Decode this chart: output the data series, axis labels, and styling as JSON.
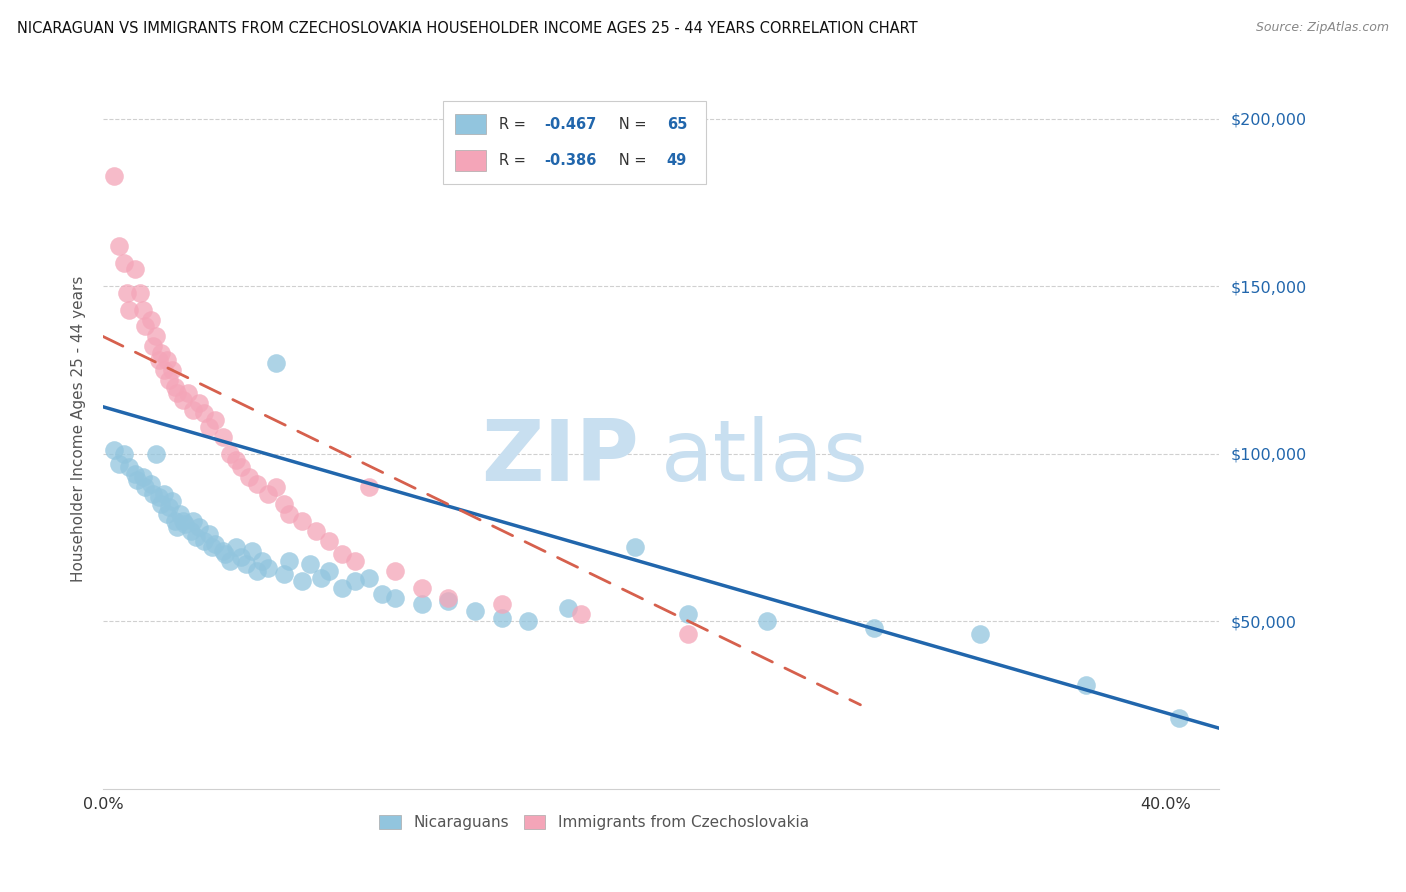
{
  "title": "NICARAGUAN VS IMMIGRANTS FROM CZECHOSLOVAKIA HOUSEHOLDER INCOME AGES 25 - 44 YEARS CORRELATION CHART",
  "source": "Source: ZipAtlas.com",
  "ylabel": "Householder Income Ages 25 - 44 years",
  "ytick_labels": [
    "$50,000",
    "$100,000",
    "$150,000",
    "$200,000"
  ],
  "ytick_values": [
    50000,
    100000,
    150000,
    200000
  ],
  "ylim": [
    0,
    215000
  ],
  "xlim": [
    0.0,
    0.42
  ],
  "xtick_values": [
    0.0,
    0.1,
    0.2,
    0.3,
    0.4
  ],
  "xtick_labels": [
    "0.0%",
    "",
    "",
    "",
    "40.0%"
  ],
  "blue_color": "#92c5de",
  "pink_color": "#f4a5b8",
  "trendline_blue": "#2166ac",
  "trendline_pink": "#d6604d",
  "legend_blue_r": "-0.467",
  "legend_blue_n": "65",
  "legend_pink_r": "-0.386",
  "legend_pink_n": "49",
  "legend_label_blue": "Nicaraguans",
  "legend_label_pink": "Immigrants from Czechoslovakia",
  "blue_trend_x0": 0.0,
  "blue_trend_y0": 114000,
  "blue_trend_x1": 0.42,
  "blue_trend_y1": 18000,
  "pink_trend_x0": 0.0,
  "pink_trend_y0": 135000,
  "pink_trend_x1": 0.285,
  "pink_trend_y1": 25000,
  "blue_scatter_x": [
    0.004,
    0.006,
    0.008,
    0.01,
    0.012,
    0.013,
    0.015,
    0.016,
    0.018,
    0.019,
    0.02,
    0.021,
    0.022,
    0.023,
    0.024,
    0.025,
    0.026,
    0.027,
    0.028,
    0.029,
    0.03,
    0.031,
    0.033,
    0.034,
    0.035,
    0.036,
    0.038,
    0.04,
    0.041,
    0.042,
    0.045,
    0.046,
    0.048,
    0.05,
    0.052,
    0.054,
    0.056,
    0.058,
    0.06,
    0.062,
    0.065,
    0.068,
    0.07,
    0.075,
    0.078,
    0.082,
    0.085,
    0.09,
    0.095,
    0.1,
    0.105,
    0.11,
    0.12,
    0.13,
    0.14,
    0.15,
    0.16,
    0.175,
    0.2,
    0.22,
    0.25,
    0.29,
    0.33,
    0.37,
    0.405
  ],
  "blue_scatter_y": [
    101000,
    97000,
    100000,
    96000,
    94000,
    92000,
    93000,
    90000,
    91000,
    88000,
    100000,
    87000,
    85000,
    88000,
    82000,
    84000,
    86000,
    80000,
    78000,
    82000,
    80000,
    79000,
    77000,
    80000,
    75000,
    78000,
    74000,
    76000,
    72000,
    73000,
    71000,
    70000,
    68000,
    72000,
    69000,
    67000,
    71000,
    65000,
    68000,
    66000,
    127000,
    64000,
    68000,
    62000,
    67000,
    63000,
    65000,
    60000,
    62000,
    63000,
    58000,
    57000,
    55000,
    56000,
    53000,
    51000,
    50000,
    54000,
    72000,
    52000,
    50000,
    48000,
    46000,
    31000,
    21000
  ],
  "pink_scatter_x": [
    0.004,
    0.006,
    0.008,
    0.009,
    0.01,
    0.012,
    0.014,
    0.015,
    0.016,
    0.018,
    0.019,
    0.02,
    0.021,
    0.022,
    0.023,
    0.024,
    0.025,
    0.026,
    0.027,
    0.028,
    0.03,
    0.032,
    0.034,
    0.036,
    0.038,
    0.04,
    0.042,
    0.045,
    0.048,
    0.05,
    0.052,
    0.055,
    0.058,
    0.062,
    0.065,
    0.068,
    0.07,
    0.075,
    0.08,
    0.085,
    0.09,
    0.095,
    0.1,
    0.11,
    0.12,
    0.13,
    0.15,
    0.18,
    0.22
  ],
  "pink_scatter_y": [
    183000,
    162000,
    157000,
    148000,
    143000,
    155000,
    148000,
    143000,
    138000,
    140000,
    132000,
    135000,
    128000,
    130000,
    125000,
    128000,
    122000,
    125000,
    120000,
    118000,
    116000,
    118000,
    113000,
    115000,
    112000,
    108000,
    110000,
    105000,
    100000,
    98000,
    96000,
    93000,
    91000,
    88000,
    90000,
    85000,
    82000,
    80000,
    77000,
    74000,
    70000,
    68000,
    90000,
    65000,
    60000,
    57000,
    55000,
    52000,
    46000
  ]
}
